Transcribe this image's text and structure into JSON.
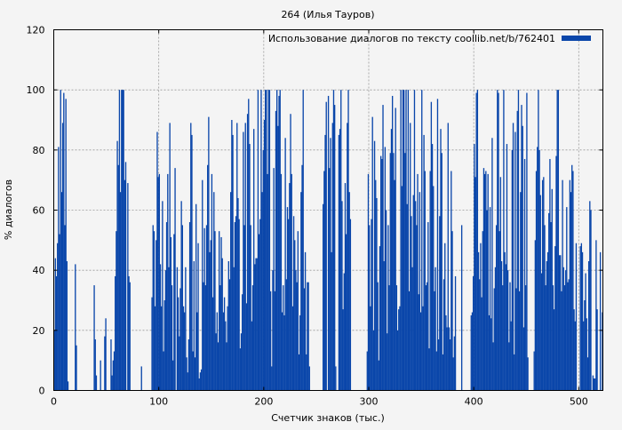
{
  "chart_data": {
    "type": "bar",
    "title": "264 (Илья Тауров)",
    "xlabel": "Счетчик знаков (тыс.)",
    "ylabel": "% диалогов",
    "xlim": [
      0,
      523
    ],
    "ylim": [
      0,
      120
    ],
    "xticks": [
      0,
      100,
      200,
      300,
      400,
      500
    ],
    "yticks": [
      0,
      20,
      40,
      60,
      80,
      100,
      120
    ],
    "grid": true,
    "legend_position": "top-right",
    "series": [
      {
        "name": "Использование диалогов по тексту coollib.net/b/762401",
        "color": "#0a46aa",
        "x": [
          0,
          1,
          2,
          3,
          4,
          5,
          6,
          7,
          8,
          9,
          10,
          11,
          12,
          13,
          14,
          15,
          16,
          17,
          18,
          19,
          20,
          21,
          22,
          23,
          24,
          25,
          26,
          27,
          28,
          29,
          30,
          31,
          32,
          33,
          34,
          35,
          36,
          37,
          38,
          39,
          40,
          41,
          42,
          43,
          44,
          45,
          46,
          47,
          48,
          49,
          50,
          51,
          52,
          53,
          54,
          55,
          56,
          57,
          58,
          59,
          60,
          61,
          62,
          63,
          64,
          65,
          66,
          67,
          68,
          69,
          70,
          71,
          72,
          73,
          74,
          75,
          76,
          77,
          78,
          79,
          80,
          81,
          82,
          83,
          84,
          85,
          86,
          87,
          88,
          89,
          90,
          91,
          92,
          93,
          94,
          95,
          96,
          97,
          98,
          99,
          100,
          101,
          102,
          103,
          104,
          105,
          106,
          107,
          108,
          109,
          110,
          111,
          112,
          113,
          114,
          115,
          116,
          117,
          118,
          119,
          120,
          121,
          122,
          123,
          124,
          125,
          126,
          127,
          128,
          129,
          130,
          131,
          132,
          133,
          134,
          135,
          136,
          137,
          138,
          139,
          140,
          141,
          142,
          143,
          144,
          145,
          146,
          147,
          148,
          149,
          150,
          151,
          152,
          153,
          154,
          155,
          156,
          157,
          158,
          159,
          160,
          161,
          162,
          163,
          164,
          165,
          166,
          167,
          168,
          169,
          170,
          171,
          172,
          173,
          174,
          175,
          176,
          177,
          178,
          179,
          180,
          181,
          182,
          183,
          184,
          185,
          186,
          187,
          188,
          189,
          190,
          191,
          192,
          193,
          194,
          195,
          196,
          197,
          198,
          199,
          200,
          201,
          202,
          203,
          204,
          205,
          206,
          207,
          208,
          209,
          210,
          211,
          212,
          213,
          214,
          215,
          216,
          217,
          218,
          219,
          220,
          221,
          222,
          223,
          224,
          225,
          226,
          227,
          228,
          229,
          230,
          231,
          232,
          233,
          234,
          235,
          236,
          237,
          238,
          239,
          240,
          241,
          242,
          243,
          244,
          245,
          246,
          247,
          248,
          249,
          250,
          251,
          252,
          253,
          254,
          255,
          256,
          257,
          258,
          259,
          260,
          261,
          262,
          263,
          264,
          265,
          266,
          267,
          268,
          269,
          270,
          271,
          272,
          273,
          274,
          275,
          276,
          277,
          278,
          279,
          280,
          281,
          282,
          283,
          284,
          285,
          286,
          287,
          288,
          289,
          290,
          291,
          292,
          293,
          294,
          295,
          296,
          297,
          298,
          299,
          300,
          301,
          302,
          303,
          304,
          305,
          306,
          307,
          308,
          309,
          310,
          311,
          312,
          313,
          314,
          315,
          316,
          317,
          318,
          319,
          320,
          321,
          322,
          323,
          324,
          325,
          326,
          327,
          328,
          329,
          330,
          331,
          332,
          333,
          334,
          335,
          336,
          337,
          338,
          339,
          340,
          341,
          342,
          343,
          344,
          345,
          346,
          347,
          348,
          349,
          350,
          351,
          352,
          353,
          354,
          355,
          356,
          357,
          358,
          359,
          360,
          361,
          362,
          363,
          364,
          365,
          366,
          367,
          368,
          369,
          370,
          371,
          372,
          373,
          374,
          375,
          376,
          377,
          378,
          379,
          380,
          381,
          382,
          383,
          384,
          385,
          386,
          387,
          388,
          389,
          390,
          391,
          392,
          393,
          394,
          395,
          396,
          397,
          398,
          399,
          400,
          401,
          402,
          403,
          404,
          405,
          406,
          407,
          408,
          409,
          410,
          411,
          412,
          413,
          414,
          415,
          416,
          417,
          418,
          419,
          420,
          421,
          422,
          423,
          424,
          425,
          426,
          427,
          428,
          429,
          430,
          431,
          432,
          433,
          434,
          435,
          436,
          437,
          438,
          439,
          440,
          441,
          442,
          443,
          444,
          445,
          446,
          447,
          448,
          449,
          450,
          451,
          452,
          453,
          454,
          455,
          456,
          457,
          458,
          459,
          460,
          461,
          462,
          463,
          464,
          465,
          466,
          467,
          468,
          469,
          470,
          471,
          472,
          473,
          474,
          475,
          476,
          477,
          478,
          479,
          480,
          481,
          482,
          483,
          484,
          485,
          486,
          487,
          488,
          489,
          490,
          491,
          492,
          493,
          494,
          495,
          496,
          497,
          498,
          499,
          500,
          501,
          502,
          503,
          504,
          505,
          506,
          507,
          508,
          509,
          510,
          511,
          512,
          513,
          514,
          515,
          516,
          517,
          518,
          519,
          520,
          521,
          522
        ],
        "values": [
          20,
          44,
          38,
          49,
          81,
          52,
          100,
          66,
          89,
          99,
          55,
          97,
          43,
          3,
          0,
          0,
          0,
          0,
          0,
          0,
          42,
          15,
          0,
          0,
          0,
          0,
          0,
          0,
          0,
          0,
          0,
          0,
          0,
          0,
          0,
          0,
          0,
          0,
          35,
          17,
          5,
          0,
          0,
          0,
          10,
          0,
          0,
          0,
          18,
          24,
          0,
          0,
          0,
          0,
          17,
          5,
          10,
          13,
          38,
          53,
          83,
          75,
          100,
          66,
          100,
          100,
          100,
          70,
          76,
          0,
          69,
          38,
          36,
          0,
          0,
          0,
          0,
          0,
          0,
          0,
          0,
          0,
          0,
          8,
          0,
          0,
          0,
          0,
          0,
          0,
          0,
          0,
          0,
          31,
          55,
          53,
          28,
          50,
          86,
          71,
          72,
          42,
          28,
          63,
          13,
          30,
          40,
          56,
          72,
          41,
          89,
          51,
          35,
          10,
          52,
          74,
          0,
          41,
          31,
          18,
          34,
          63,
          55,
          28,
          26,
          41,
          11,
          6,
          17,
          56,
          89,
          85,
          13,
          43,
          11,
          62,
          26,
          49,
          4,
          6,
          7,
          70,
          36,
          54,
          35,
          55,
          75,
          91,
          46,
          50,
          72,
          31,
          66,
          53,
          19,
          26,
          16,
          53,
          35,
          51,
          44,
          26,
          31,
          23,
          16,
          28,
          43,
          37,
          66,
          90,
          85,
          41,
          56,
          58,
          89,
          64,
          57,
          14,
          19,
          32,
          86,
          55,
          89,
          29,
          92,
          97,
          82,
          55,
          23,
          35,
          87,
          42,
          44,
          44,
          100,
          52,
          57,
          100,
          66,
          80,
          90,
          100,
          100,
          72,
          100,
          100,
          33,
          8,
          40,
          74,
          33,
          93,
          100,
          88,
          98,
          100,
          72,
          26,
          35,
          25,
          84,
          37,
          61,
          57,
          69,
          92,
          72,
          28,
          58,
          50,
          40,
          36,
          53,
          12,
          25,
          66,
          75,
          100,
          34,
          46,
          12,
          36,
          36,
          8,
          0,
          0,
          0,
          0,
          0,
          0,
          0,
          0,
          0,
          0,
          0,
          0,
          62,
          73,
          85,
          96,
          0,
          98,
          74,
          84,
          46,
          89,
          100,
          95,
          8,
          0,
          0,
          85,
          87,
          100,
          63,
          27,
          39,
          69,
          52,
          89,
          100,
          66,
          57,
          0,
          0,
          0,
          0,
          0,
          0,
          0,
          0,
          0,
          0,
          0,
          0,
          0,
          0,
          0,
          13,
          72,
          55,
          28,
          57,
          91,
          20,
          83,
          70,
          64,
          36,
          10,
          48,
          78,
          77,
          95,
          43,
          81,
          60,
          19,
          55,
          35,
          79,
          87,
          98,
          79,
          70,
          94,
          35,
          20,
          27,
          28,
          100,
          68,
          100,
          100,
          79,
          100,
          62,
          100,
          33,
          89,
          58,
          41,
          65,
          100,
          63,
          55,
          72,
          32,
          66,
          26,
          100,
          28,
          85,
          73,
          35,
          36,
          56,
          14,
          73,
          96,
          82,
          68,
          33,
          41,
          13,
          97,
          17,
          58,
          87,
          79,
          12,
          37,
          49,
          25,
          21,
          89,
          21,
          17,
          73,
          53,
          11,
          18,
          38,
          0,
          0,
          0,
          0,
          0,
          55,
          0,
          0,
          0,
          0,
          0,
          0,
          0,
          0,
          25,
          26,
          38,
          82,
          71,
          99,
          100,
          46,
          37,
          49,
          31,
          53,
          74,
          72,
          73,
          60,
          72,
          25,
          61,
          24,
          84,
          16,
          34,
          41,
          55,
          100,
          99,
          53,
          71,
          43,
          35,
          100,
          46,
          42,
          82,
          40,
          16,
          36,
          23,
          80,
          89,
          12,
          86,
          34,
          93,
          100,
          33,
          66,
          95,
          88,
          21,
          77,
          35,
          99,
          11,
          0,
          0,
          0,
          0,
          0,
          13,
          50,
          73,
          81,
          100,
          80,
          65,
          39,
          70,
          71,
          55,
          35,
          43,
          46,
          59,
          77,
          56,
          67,
          35,
          27,
          48,
          78,
          100,
          100,
          45,
          45,
          33,
          70,
          41,
          35,
          40,
          61,
          36,
          37,
          70,
          66,
          75,
          73,
          27,
          23,
          49,
          0,
          0,
          0,
          48,
          49,
          46,
          23,
          30,
          39,
          24,
          11,
          43,
          63,
          60,
          0,
          5,
          4,
          4,
          50,
          27,
          0,
          0,
          46,
          0,
          26
        ]
      }
    ]
  }
}
